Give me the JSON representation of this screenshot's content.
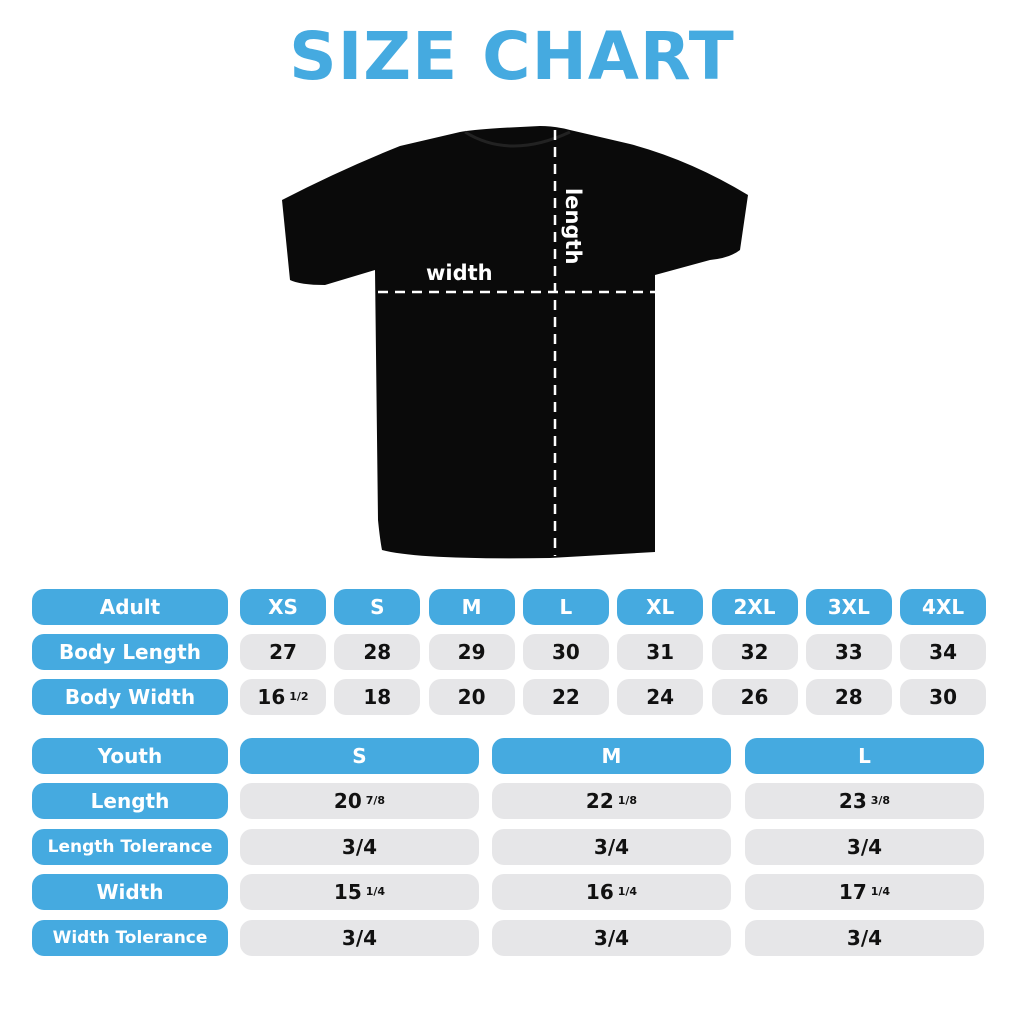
{
  "title": "SIZE CHART",
  "diagram": {
    "width_label": "width",
    "length_label": "length"
  },
  "adult": {
    "header": "Adult",
    "sizes": [
      "XS",
      "S",
      "M",
      "L",
      "XL",
      "2XL",
      "3XL",
      "4XL"
    ],
    "rows": [
      {
        "label": "Body Length",
        "values": [
          [
            "27",
            ""
          ],
          [
            "28",
            ""
          ],
          [
            "29",
            ""
          ],
          [
            "30",
            ""
          ],
          [
            "31",
            ""
          ],
          [
            "32",
            ""
          ],
          [
            "33",
            ""
          ],
          [
            "34",
            ""
          ]
        ]
      },
      {
        "label": "Body Width",
        "values": [
          [
            "16",
            "1/2"
          ],
          [
            "18",
            ""
          ],
          [
            "20",
            ""
          ],
          [
            "22",
            ""
          ],
          [
            "24",
            ""
          ],
          [
            "26",
            ""
          ],
          [
            "28",
            ""
          ],
          [
            "30",
            ""
          ]
        ]
      }
    ]
  },
  "youth": {
    "header": "Youth",
    "sizes": [
      "S",
      "M",
      "L"
    ],
    "rows": [
      {
        "label": "Length",
        "values": [
          [
            "20",
            "7/8"
          ],
          [
            "22",
            "1/8"
          ],
          [
            "23",
            "3/8"
          ]
        ]
      },
      {
        "label": "Length Tolerance",
        "values": [
          [
            "3/4",
            ""
          ],
          [
            "3/4",
            ""
          ],
          [
            "3/4",
            ""
          ]
        ]
      },
      {
        "label": "Width",
        "values": [
          [
            "15",
            "1/4"
          ],
          [
            "16",
            "1/4"
          ],
          [
            "17",
            "1/4"
          ]
        ]
      },
      {
        "label": "Width Tolerance",
        "values": [
          [
            "3/4",
            ""
          ],
          [
            "3/4",
            ""
          ],
          [
            "3/4",
            ""
          ]
        ]
      }
    ]
  },
  "colors": {
    "accent": "#45aae0",
    "cell": "#e6e6e8",
    "shirt": "#0a0a0a"
  }
}
